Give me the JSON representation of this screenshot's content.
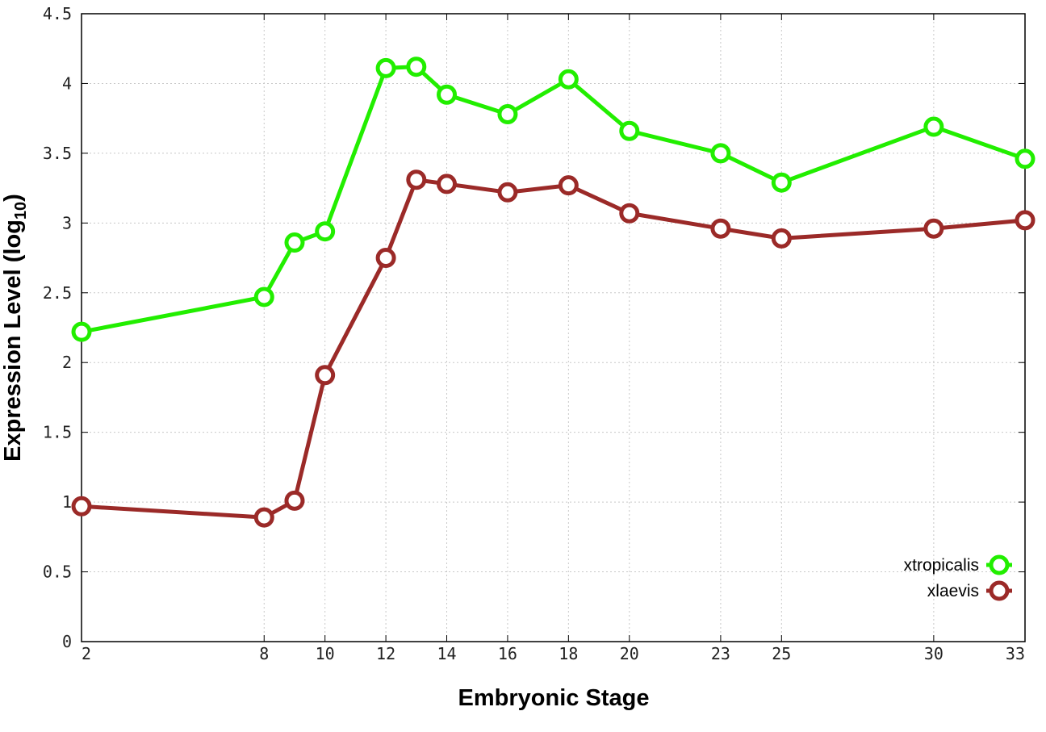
{
  "chart_data": {
    "type": "line",
    "xlabel": "Embryonic Stage",
    "ylabel_main": "Expression Level (log",
    "ylabel_sub": "10",
    "ylabel_close": ")",
    "x": [
      2,
      8,
      9,
      10,
      12,
      13,
      14,
      16,
      18,
      20,
      23,
      25,
      30,
      33
    ],
    "xticks": [
      "2",
      "8",
      "10",
      "12",
      "14",
      "16",
      "18",
      "20",
      "23",
      "25",
      "30",
      "33"
    ],
    "xtick_values": [
      2,
      8,
      10,
      12,
      14,
      16,
      18,
      20,
      23,
      25,
      30,
      33
    ],
    "xlim": [
      2,
      33
    ],
    "ylim": [
      0,
      4.5
    ],
    "yticks": [
      "0",
      "0.5",
      "1",
      "1.5",
      "2",
      "2.5",
      "3",
      "3.5",
      "4",
      "4.5"
    ],
    "ytick_values": [
      0,
      0.5,
      1,
      1.5,
      2,
      2.5,
      3,
      3.5,
      4,
      4.5
    ],
    "grid": true,
    "legend_position": "bottom-right",
    "series": [
      {
        "name": "xtropicalis",
        "color": "#22ee00",
        "values": [
          2.22,
          2.47,
          2.86,
          2.94,
          4.11,
          4.12,
          3.92,
          3.78,
          4.03,
          3.66,
          3.5,
          3.29,
          3.69,
          3.46
        ]
      },
      {
        "name": "xlaevis",
        "color": "#9b2a28",
        "values": [
          0.97,
          0.89,
          1.01,
          1.91,
          2.75,
          3.31,
          3.28,
          3.22,
          3.27,
          3.07,
          2.96,
          2.89,
          2.96,
          3.02
        ]
      }
    ]
  }
}
